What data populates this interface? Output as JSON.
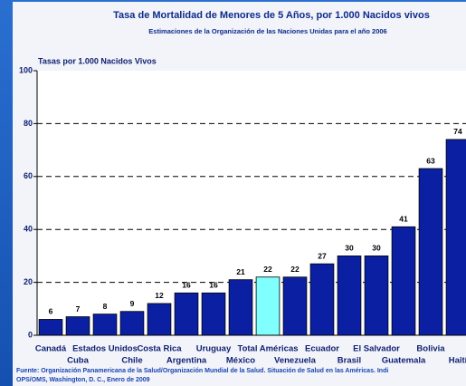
{
  "chart_data": {
    "type": "bar",
    "title": "Tasa de Mortalidad de Menores de 5 Años, por 1.000 Nacidos vivos",
    "subtitle": "Estimaciones de la Organización de las Naciones Unidas para el año 2006",
    "y_label": "Tasas por 1.000 Nacidos Vivos",
    "categories": [
      "Canadá",
      "Cuba",
      "Estados Unidos",
      "Chile",
      "Costa Rica",
      "Argentina",
      "Uruguay",
      "México",
      "Total Américas",
      "Venezuela",
      "Ecuador",
      "Brasil",
      "El Salvador",
      "Guatemala",
      "Bolivia",
      "Haití"
    ],
    "values": [
      6,
      7,
      8,
      9,
      12,
      16,
      16,
      21,
      22,
      22,
      27,
      30,
      30,
      41,
      63,
      74
    ],
    "colors": [
      "#0b1fa3",
      "#0b1fa3",
      "#0b1fa3",
      "#0b1fa3",
      "#0b1fa3",
      "#0b1fa3",
      "#0b1fa3",
      "#0b1fa3",
      "#80ffff",
      "#0b1fa3",
      "#0b1fa3",
      "#0b1fa3",
      "#0b1fa3",
      "#0b1fa3",
      "#0b1fa3",
      "#0b1fa3"
    ],
    "ylim": [
      0,
      100
    ],
    "yticks": [
      0,
      20,
      40,
      60,
      80,
      100
    ],
    "grid": true,
    "source": [
      "Fuente: Organización Panamericana de la Salud/Organización Mundial de la Salud. Situación de Salud en las Américas. Indi",
      "OPS/OMS, Washington, D. C., Enero de 2009"
    ]
  }
}
